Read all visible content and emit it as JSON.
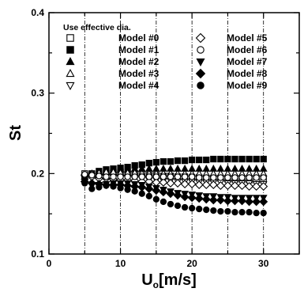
{
  "chart_data": {
    "type": "scatter",
    "title": "",
    "xlabel_main": "U",
    "xlabel_sub": "o",
    "xlabel_rest": "[m/s]",
    "ylabel": "St",
    "xlim": [
      0,
      35
    ],
    "ylim": [
      0.1,
      0.4
    ],
    "xticks": [
      0,
      10,
      20,
      30
    ],
    "yticks": [
      0.1,
      0.2,
      0.3,
      0.4
    ],
    "grid": "vertical dash-dot lines every 5 m/s",
    "legend_placement": "top-left inside plot, two columns",
    "annotation": "Use effective dia.",
    "x": [
      5,
      6,
      7,
      8,
      9,
      10,
      11,
      12,
      13,
      14,
      15,
      16,
      17,
      18,
      19,
      20,
      21,
      22,
      23,
      24,
      25,
      26,
      27,
      28,
      29,
      30
    ],
    "series": [
      {
        "name": "Model #0",
        "marker": "square-open",
        "values": [
          0.2,
          0.198,
          0.199,
          0.2,
          0.201,
          0.202,
          0.2,
          0.199,
          0.199,
          0.198,
          0.198,
          0.197,
          0.197,
          0.196,
          0.196,
          0.195,
          0.195,
          0.194,
          0.194,
          0.194,
          0.193,
          0.193,
          0.193,
          0.192,
          0.192,
          0.192
        ]
      },
      {
        "name": "Model #1",
        "marker": "square-filled",
        "values": [
          0.197,
          0.2,
          0.203,
          0.205,
          0.206,
          0.207,
          0.208,
          0.21,
          0.211,
          0.213,
          0.214,
          0.215,
          0.215,
          0.216,
          0.216,
          0.217,
          0.217,
          0.217,
          0.218,
          0.218,
          0.218,
          0.218,
          0.218,
          0.218,
          0.218,
          0.218
        ]
      },
      {
        "name": "Model #2",
        "marker": "triangle-up-filled",
        "values": [
          0.196,
          0.199,
          0.201,
          0.203,
          0.204,
          0.205,
          0.205,
          0.206,
          0.206,
          0.206,
          0.206,
          0.206,
          0.206,
          0.206,
          0.206,
          0.206,
          0.206,
          0.206,
          0.206,
          0.206,
          0.206,
          0.206,
          0.206,
          0.206,
          0.206,
          0.206
        ]
      },
      {
        "name": "Model #3",
        "marker": "triangle-up-open",
        "values": [
          0.199,
          0.2,
          0.201,
          0.202,
          0.202,
          0.201,
          0.201,
          0.201,
          0.2,
          0.2,
          0.2,
          0.2,
          0.2,
          0.2,
          0.2,
          0.2,
          0.2,
          0.2,
          0.2,
          0.2,
          0.2,
          0.2,
          0.2,
          0.2,
          0.2,
          0.2
        ]
      },
      {
        "name": "Model #4",
        "marker": "triangle-down-open",
        "values": [
          0.196,
          0.197,
          0.196,
          0.196,
          0.195,
          0.194,
          0.194,
          0.193,
          0.193,
          0.192,
          0.192,
          0.191,
          0.191,
          0.19,
          0.19,
          0.19,
          0.189,
          0.189,
          0.189,
          0.189,
          0.188,
          0.188,
          0.188,
          0.188,
          0.187,
          0.187
        ]
      },
      {
        "name": "Model #5",
        "marker": "diamond-open",
        "values": [
          0.198,
          0.196,
          0.194,
          0.194,
          0.193,
          0.192,
          0.192,
          0.191,
          0.19,
          0.19,
          0.189,
          0.189,
          0.188,
          0.188,
          0.187,
          0.187,
          0.186,
          0.186,
          0.186,
          0.185,
          0.185,
          0.185,
          0.185,
          0.184,
          0.184,
          0.184
        ]
      },
      {
        "name": "Model #6",
        "marker": "circle-open",
        "values": [
          0.199,
          0.198,
          0.197,
          0.196,
          0.196,
          0.196,
          0.196,
          0.196,
          0.196,
          0.196,
          0.196,
          0.196,
          0.196,
          0.196,
          0.196,
          0.196,
          0.195,
          0.195,
          0.195,
          0.195,
          0.195,
          0.195,
          0.195,
          0.195,
          0.195,
          0.195
        ]
      },
      {
        "name": "Model #7",
        "marker": "triangle-down-filled",
        "values": [
          0.19,
          0.185,
          0.186,
          0.187,
          0.188,
          0.188,
          0.188,
          0.187,
          0.186,
          0.184,
          0.182,
          0.18,
          0.178,
          0.176,
          0.175,
          0.174,
          0.173,
          0.172,
          0.172,
          0.171,
          0.171,
          0.17,
          0.17,
          0.17,
          0.17,
          0.17
        ]
      },
      {
        "name": "Model #8",
        "marker": "diamond-filled",
        "values": [
          0.19,
          0.188,
          0.187,
          0.186,
          0.186,
          0.186,
          0.185,
          0.184,
          0.183,
          0.181,
          0.179,
          0.177,
          0.175,
          0.173,
          0.171,
          0.17,
          0.169,
          0.168,
          0.167,
          0.167,
          0.166,
          0.166,
          0.166,
          0.165,
          0.165,
          0.165
        ]
      },
      {
        "name": "Model #9",
        "marker": "circle-filled",
        "values": [
          0.188,
          0.181,
          0.183,
          0.185,
          0.184,
          0.182,
          0.18,
          0.178,
          0.175,
          0.172,
          0.168,
          0.165,
          0.162,
          0.16,
          0.158,
          0.157,
          0.156,
          0.155,
          0.154,
          0.153,
          0.153,
          0.152,
          0.152,
          0.152,
          0.151,
          0.151
        ]
      }
    ]
  }
}
